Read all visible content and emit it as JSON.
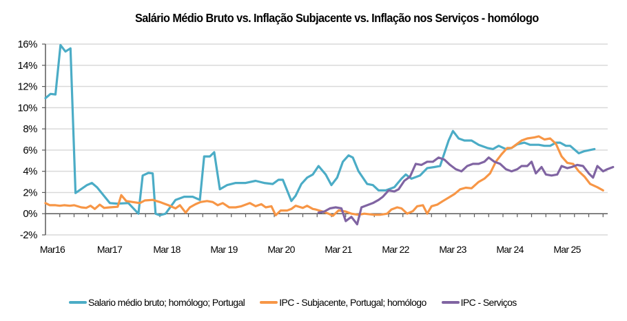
{
  "chart_data": {
    "type": "line",
    "title": "Salário Médio Bruto vs. Inflação Subjacente vs. Inflação nos Serviços  - homólogo",
    "xlabel": "",
    "ylabel": "",
    "ylim": [
      -2,
      16
    ],
    "y_ticks": [
      -2,
      0,
      2,
      4,
      6,
      8,
      10,
      12,
      14,
      16
    ],
    "y_tick_labels": [
      "-2%",
      "0%",
      "2%",
      "4%",
      "6%",
      "8%",
      "10%",
      "12%",
      "14%",
      "16%"
    ],
    "x_unit": "quarters since Mar 2016",
    "xlim": [
      0,
      39
    ],
    "x_tick_positions": [
      0,
      4,
      8,
      12,
      16,
      20,
      24,
      28,
      32,
      36
    ],
    "x_tick_labels": [
      "Mar16",
      "Mar17",
      "Mar 18",
      "Mar 19",
      "Mar 20",
      "Mar 21",
      "Mar 22",
      "Mar 23",
      "Mar 24",
      "Mar 25"
    ],
    "grid": "horizontal",
    "legend_position": "bottom",
    "series": [
      {
        "name": "Salario médio bruto; homólogo; Portugal",
        "color": "#4bacc6",
        "points": [
          [
            0,
            10.9
          ],
          [
            0.35,
            11.3
          ],
          [
            0.7,
            11.25
          ],
          [
            1.05,
            15.9
          ],
          [
            1.4,
            15.3
          ],
          [
            1.75,
            15.6
          ],
          [
            2.1,
            1.95
          ],
          [
            2.9,
            2.7
          ],
          [
            3.25,
            2.9
          ],
          [
            3.6,
            2.5
          ],
          [
            4.5,
            1.0
          ],
          [
            5.0,
            0.95
          ],
          [
            5.8,
            1.0
          ],
          [
            6.5,
            0.0
          ],
          [
            6.8,
            3.6
          ],
          [
            7.2,
            3.85
          ],
          [
            7.5,
            3.8
          ],
          [
            7.7,
            0.0
          ],
          [
            8.0,
            -0.15
          ],
          [
            8.4,
            0.0
          ],
          [
            9.1,
            1.3
          ],
          [
            9.7,
            1.6
          ],
          [
            10.3,
            1.6
          ],
          [
            10.8,
            1.3
          ],
          [
            11.1,
            5.4
          ],
          [
            11.5,
            5.4
          ],
          [
            11.8,
            5.8
          ],
          [
            12.2,
            2.3
          ],
          [
            12.7,
            2.7
          ],
          [
            13.3,
            2.9
          ],
          [
            14.0,
            2.9
          ],
          [
            14.7,
            3.1
          ],
          [
            15.3,
            2.9
          ],
          [
            15.9,
            2.8
          ],
          [
            16.3,
            3.2
          ],
          [
            16.6,
            3.2
          ],
          [
            17.2,
            1.2
          ],
          [
            17.5,
            1.7
          ],
          [
            17.9,
            2.8
          ],
          [
            18.3,
            3.4
          ],
          [
            18.7,
            3.7
          ],
          [
            19.1,
            4.5
          ],
          [
            19.6,
            3.7
          ],
          [
            20.0,
            2.7
          ],
          [
            20.4,
            3.4
          ],
          [
            20.8,
            4.9
          ],
          [
            21.2,
            5.5
          ],
          [
            21.5,
            5.3
          ],
          [
            21.9,
            4.0
          ],
          [
            22.5,
            2.8
          ],
          [
            22.9,
            2.7
          ],
          [
            23.3,
            2.2
          ],
          [
            23.8,
            2.2
          ],
          [
            24.4,
            2.5
          ],
          [
            24.9,
            3.3
          ],
          [
            25.2,
            3.7
          ],
          [
            25.6,
            3.3
          ],
          [
            26.2,
            3.6
          ],
          [
            26.7,
            4.3
          ],
          [
            27.2,
            4.4
          ],
          [
            27.6,
            4.5
          ],
          [
            28.2,
            6.9
          ],
          [
            28.5,
            7.8
          ],
          [
            28.9,
            7.1
          ],
          [
            29.3,
            6.9
          ],
          [
            29.8,
            6.9
          ],
          [
            30.3,
            6.5
          ],
          [
            30.9,
            6.2
          ],
          [
            31.3,
            6.1
          ],
          [
            31.7,
            6.4
          ],
          [
            32.2,
            6.1
          ],
          [
            32.6,
            6.2
          ],
          [
            33.0,
            6.55
          ],
          [
            33.5,
            6.7
          ],
          [
            33.9,
            6.5
          ],
          [
            34.5,
            6.5
          ],
          [
            34.9,
            6.4
          ],
          [
            35.3,
            6.4
          ],
          [
            35.7,
            6.7
          ],
          [
            36.0,
            6.7
          ],
          [
            36.4,
            6.4
          ],
          [
            36.7,
            6.4
          ],
          [
            37.3,
            5.7
          ],
          [
            37.7,
            5.9
          ],
          [
            38.4,
            6.1
          ]
        ]
      },
      {
        "name": "IPC - Subjacente, Portugal; homólogo",
        "color": "#f79646",
        "points": [
          [
            0,
            1.0
          ],
          [
            0.3,
            0.8
          ],
          [
            0.7,
            0.8
          ],
          [
            1.0,
            0.75
          ],
          [
            1.3,
            0.8
          ],
          [
            1.7,
            0.75
          ],
          [
            2.0,
            0.8
          ],
          [
            2.5,
            0.6
          ],
          [
            2.85,
            0.55
          ],
          [
            3.15,
            0.75
          ],
          [
            3.45,
            0.45
          ],
          [
            3.8,
            0.85
          ],
          [
            4.1,
            0.55
          ],
          [
            4.5,
            0.6
          ],
          [
            5.05,
            0.65
          ],
          [
            5.3,
            1.75
          ],
          [
            5.65,
            1.2
          ],
          [
            6.1,
            1.1
          ],
          [
            6.6,
            1.0
          ],
          [
            6.95,
            1.25
          ],
          [
            7.5,
            1.3
          ],
          [
            8.0,
            1.1
          ],
          [
            8.3,
            0.95
          ],
          [
            8.6,
            0.8
          ],
          [
            9.1,
            0.5
          ],
          [
            9.4,
            0.8
          ],
          [
            9.8,
            0.1
          ],
          [
            10.1,
            0.6
          ],
          [
            10.5,
            0.9
          ],
          [
            10.85,
            1.1
          ],
          [
            11.3,
            1.2
          ],
          [
            11.7,
            1.1
          ],
          [
            12.05,
            0.8
          ],
          [
            12.4,
            1.0
          ],
          [
            12.85,
            0.6
          ],
          [
            13.3,
            0.6
          ],
          [
            13.7,
            0.7
          ],
          [
            14.3,
            1.0
          ],
          [
            14.7,
            0.7
          ],
          [
            15.1,
            0.9
          ],
          [
            15.4,
            0.6
          ],
          [
            15.8,
            0.7
          ],
          [
            16.1,
            -0.15
          ],
          [
            16.45,
            0.3
          ],
          [
            16.9,
            0.3
          ],
          [
            17.2,
            0.45
          ],
          [
            17.5,
            0.75
          ],
          [
            18.0,
            0.55
          ],
          [
            18.3,
            0.75
          ],
          [
            18.7,
            0.45
          ],
          [
            18.9,
            0.4
          ],
          [
            19.4,
            0.2
          ],
          [
            19.8,
            0.0
          ],
          [
            20.1,
            -0.2
          ],
          [
            20.5,
            0.3
          ],
          [
            21.0,
            0.2
          ],
          [
            21.4,
            0.0
          ],
          [
            21.9,
            -0.1
          ],
          [
            22.3,
            0.0
          ],
          [
            23.0,
            -0.1
          ],
          [
            23.4,
            -0.1
          ],
          [
            23.9,
            0.0
          ],
          [
            24.2,
            0.4
          ],
          [
            24.6,
            0.6
          ],
          [
            24.9,
            0.5
          ],
          [
            25.3,
            0.0
          ],
          [
            25.7,
            0.25
          ],
          [
            26.0,
            0.7
          ],
          [
            26.4,
            0.8
          ],
          [
            26.7,
            0.0
          ],
          [
            27.0,
            0.7
          ],
          [
            27.4,
            0.85
          ],
          [
            27.8,
            1.2
          ],
          [
            28.3,
            1.6
          ],
          [
            28.6,
            1.85
          ],
          [
            29.0,
            2.3
          ],
          [
            29.4,
            2.45
          ],
          [
            29.8,
            2.4
          ],
          [
            30.3,
            3.0
          ],
          [
            30.7,
            3.3
          ],
          [
            31.1,
            3.8
          ],
          [
            31.5,
            4.9
          ],
          [
            31.9,
            5.6
          ],
          [
            32.3,
            6.2
          ],
          [
            32.6,
            6.2
          ],
          [
            32.9,
            6.5
          ],
          [
            33.3,
            6.9
          ],
          [
            33.7,
            7.1
          ],
          [
            34.2,
            7.2
          ],
          [
            34.5,
            7.3
          ],
          [
            34.9,
            7.0
          ],
          [
            35.3,
            7.1
          ],
          [
            35.7,
            6.6
          ],
          [
            36.1,
            5.4
          ],
          [
            36.5,
            4.8
          ],
          [
            36.9,
            4.7
          ],
          [
            37.3,
            4.0
          ],
          [
            37.7,
            3.5
          ],
          [
            38.1,
            2.8
          ],
          [
            38.6,
            2.5
          ],
          [
            39.0,
            2.2
          ]
        ]
      },
      {
        "name": "IPC - Serviços",
        "color": "#8064a2",
        "points": [
          [
            19.1,
            0.1
          ],
          [
            19.5,
            0.2
          ],
          [
            19.9,
            0.5
          ],
          [
            20.3,
            0.6
          ],
          [
            20.7,
            0.5
          ],
          [
            21.0,
            -0.7
          ],
          [
            21.4,
            -0.3
          ],
          [
            21.8,
            -1.0
          ],
          [
            22.1,
            0.6
          ],
          [
            22.5,
            0.8
          ],
          [
            22.9,
            1.0
          ],
          [
            23.3,
            1.3
          ],
          [
            23.6,
            1.6
          ],
          [
            24.0,
            2.2
          ],
          [
            24.4,
            2.1
          ],
          [
            24.7,
            2.3
          ],
          [
            25.1,
            3.1
          ],
          [
            25.5,
            3.5
          ],
          [
            25.9,
            4.7
          ],
          [
            26.3,
            4.6
          ],
          [
            26.7,
            4.9
          ],
          [
            27.1,
            4.9
          ],
          [
            27.5,
            5.3
          ],
          [
            27.9,
            5.1
          ],
          [
            28.3,
            4.6
          ],
          [
            28.7,
            4.2
          ],
          [
            29.1,
            4.0
          ],
          [
            29.5,
            4.5
          ],
          [
            29.9,
            4.7
          ],
          [
            30.3,
            4.7
          ],
          [
            30.7,
            4.9
          ],
          [
            31.0,
            5.3
          ],
          [
            31.4,
            4.9
          ],
          [
            31.8,
            4.7
          ],
          [
            32.2,
            4.2
          ],
          [
            32.6,
            4.0
          ],
          [
            33.0,
            4.2
          ],
          [
            33.3,
            4.5
          ],
          [
            33.7,
            4.5
          ],
          [
            34.0,
            4.9
          ],
          [
            34.3,
            3.8
          ],
          [
            34.7,
            4.4
          ],
          [
            35.0,
            3.7
          ],
          [
            35.4,
            3.6
          ],
          [
            35.8,
            3.7
          ],
          [
            36.1,
            4.5
          ],
          [
            36.5,
            4.3
          ],
          [
            36.8,
            4.4
          ],
          [
            37.2,
            4.6
          ],
          [
            37.6,
            4.5
          ],
          [
            38.0,
            3.8
          ],
          [
            38.3,
            3.4
          ],
          [
            38.6,
            4.5
          ],
          [
            39.0,
            4.0
          ],
          [
            39.3,
            4.2
          ],
          [
            39.7,
            4.4
          ]
        ]
      }
    ]
  }
}
